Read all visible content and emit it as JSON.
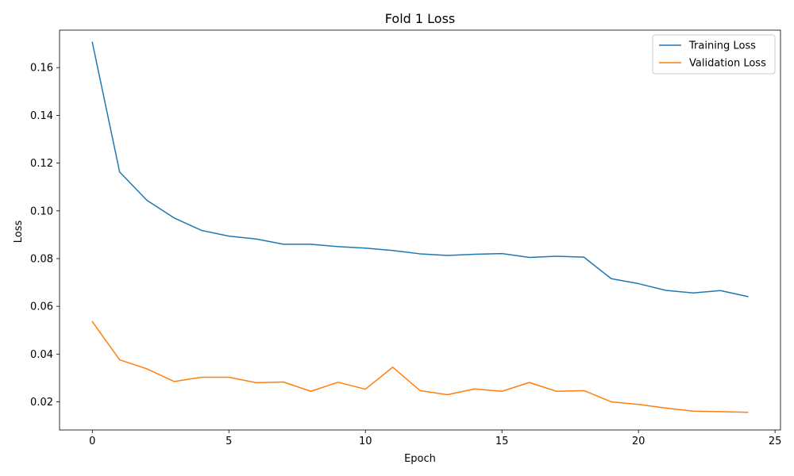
{
  "chart_data": {
    "type": "line",
    "title": "Fold 1 Loss",
    "xlabel": "Epoch",
    "ylabel": "Loss",
    "xlim": [
      -1.2,
      25.2
    ],
    "ylim": [
      0.0082,
      0.1757
    ],
    "xticks": [
      0,
      5,
      10,
      15,
      20,
      25
    ],
    "yticks": [
      0.02,
      0.04,
      0.06,
      0.08,
      0.1,
      0.12,
      0.14,
      0.16
    ],
    "ytick_labels": [
      "0.02",
      "0.04",
      "0.06",
      "0.08",
      "0.10",
      "0.12",
      "0.14",
      "0.16"
    ],
    "grid": false,
    "legend_position": "top-right",
    "x": [
      0,
      1,
      2,
      3,
      4,
      5,
      6,
      7,
      8,
      9,
      10,
      11,
      12,
      13,
      14,
      15,
      16,
      17,
      18,
      19,
      20,
      21,
      22,
      23,
      24
    ],
    "series": [
      {
        "name": "Training Loss",
        "color": "#1f77b4",
        "values": [
          0.1706,
          0.1163,
          0.1044,
          0.097,
          0.0918,
          0.0894,
          0.0882,
          0.086,
          0.086,
          0.085,
          0.0844,
          0.0834,
          0.082,
          0.0813,
          0.0818,
          0.0821,
          0.0805,
          0.081,
          0.0806,
          0.0716,
          0.0695,
          0.0667,
          0.0656,
          0.0666,
          0.0641
        ]
      },
      {
        "name": "Validation Loss",
        "color": "#ff7f0e",
        "values": [
          0.0536,
          0.0376,
          0.0338,
          0.0285,
          0.0303,
          0.0303,
          0.028,
          0.0283,
          0.0244,
          0.0282,
          0.0253,
          0.0345,
          0.0247,
          0.023,
          0.0254,
          0.0244,
          0.0281,
          0.0244,
          0.0247,
          0.02,
          0.0189,
          0.0174,
          0.0161,
          0.0159,
          0.0156
        ]
      }
    ]
  }
}
